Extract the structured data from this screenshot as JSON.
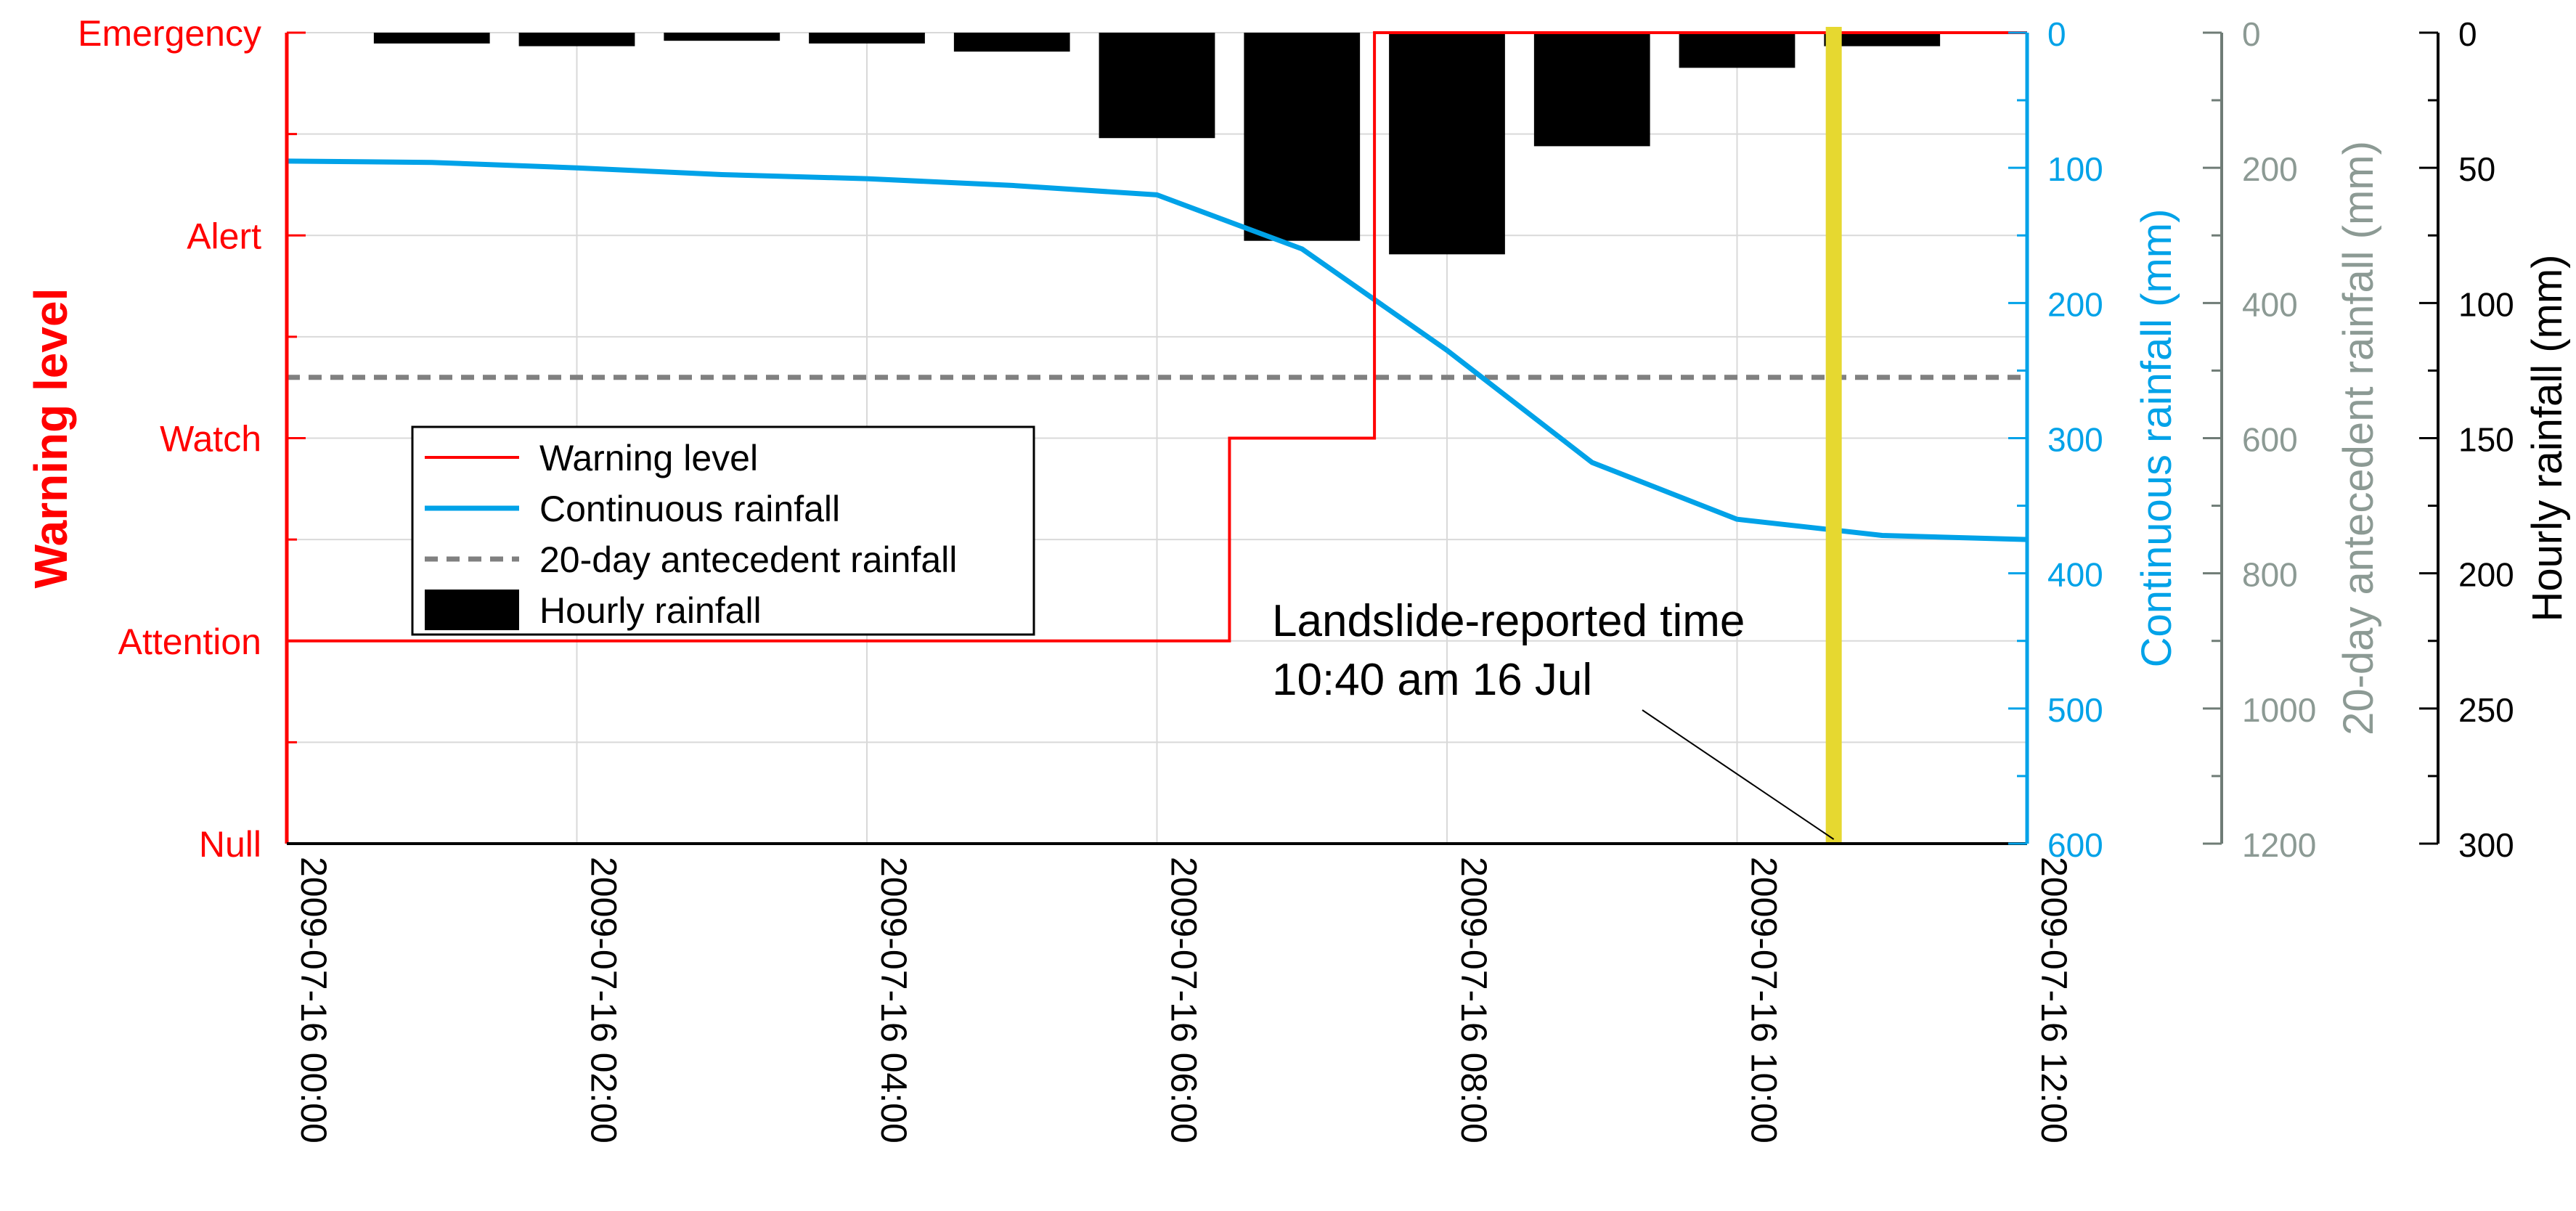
{
  "chart_data": {
    "type": "line",
    "x": {
      "start": "2009-07-16 00:00",
      "end": "2009-07-16 12:00",
      "ticks": [
        "2009-07-16 00:00",
        "2009-07-16 02:00",
        "2009-07-16 04:00",
        "2009-07-16 06:00",
        "2009-07-16 08:00",
        "2009-07-16 10:00",
        "2009-07-16 12:00"
      ],
      "grid": true
    },
    "left_axis": {
      "label": "Warning level",
      "color": "#ff0000",
      "levels": [
        "Null",
        "Attention",
        "Watch",
        "Alert",
        "Emergency"
      ]
    },
    "right_axes": [
      {
        "id": "continuous",
        "label": "Continuous rainfall (mm)",
        "color": "#00a2e8",
        "range": [
          0,
          600
        ],
        "inverted": true,
        "ticks": [
          0,
          100,
          200,
          300,
          400,
          500,
          600
        ]
      },
      {
        "id": "antecedent",
        "label": "20-day antecedent rainfall (mm)",
        "color": "#8c9a94",
        "range": [
          0,
          1200
        ],
        "inverted": true,
        "ticks": [
          0,
          200,
          400,
          600,
          800,
          1000,
          1200
        ]
      },
      {
        "id": "hourly",
        "label": "Hourly rainfall (mm)",
        "color": "#000000",
        "range": [
          0,
          300
        ],
        "inverted": true,
        "ticks": [
          0,
          50,
          100,
          150,
          200,
          250,
          300
        ]
      }
    ],
    "series": [
      {
        "name": "Warning level",
        "kind": "step",
        "axis": "level",
        "color": "#ff0000",
        "points": [
          [
            "2009-07-16 00:00",
            1
          ],
          [
            "2009-07-16 06:30",
            2
          ],
          [
            "2009-07-16 07:30",
            4
          ],
          [
            "2009-07-16 12:00",
            4
          ]
        ]
      },
      {
        "name": "Continuous rainfall",
        "kind": "line",
        "axis": "continuous",
        "color": "#00a2e8",
        "points": [
          [
            "2009-07-16 00:00",
            95
          ],
          [
            "2009-07-16 01:00",
            96
          ],
          [
            "2009-07-16 02:00",
            100
          ],
          [
            "2009-07-16 03:00",
            105
          ],
          [
            "2009-07-16 04:00",
            108
          ],
          [
            "2009-07-16 05:00",
            113
          ],
          [
            "2009-07-16 06:00",
            120
          ],
          [
            "2009-07-16 07:00",
            160
          ],
          [
            "2009-07-16 08:00",
            235
          ],
          [
            "2009-07-16 09:00",
            318
          ],
          [
            "2009-07-16 10:00",
            360
          ],
          [
            "2009-07-16 11:00",
            372
          ],
          [
            "2009-07-16 12:00",
            375
          ]
        ]
      },
      {
        "name": "20-day antecedent rainfall",
        "kind": "line",
        "axis": "antecedent",
        "style": "dashed",
        "color": "#808080",
        "points": [
          [
            "2009-07-16 00:00",
            510
          ],
          [
            "2009-07-16 12:00",
            510
          ]
        ]
      },
      {
        "name": "Hourly rainfall",
        "kind": "bar",
        "axis": "hourly",
        "color": "#000000",
        "points": [
          [
            "2009-07-16 01:00",
            4
          ],
          [
            "2009-07-16 02:00",
            5
          ],
          [
            "2009-07-16 03:00",
            3
          ],
          [
            "2009-07-16 04:00",
            4
          ],
          [
            "2009-07-16 05:00",
            7
          ],
          [
            "2009-07-16 06:00",
            39
          ],
          [
            "2009-07-16 07:00",
            77
          ],
          [
            "2009-07-16 08:00",
            82
          ],
          [
            "2009-07-16 09:00",
            42
          ],
          [
            "2009-07-16 10:00",
            13
          ],
          [
            "2009-07-16 11:00",
            5
          ]
        ]
      }
    ],
    "legend": {
      "placement": "center-left",
      "entries": [
        "Warning level",
        "Continuous rainfall",
        "20-day antecedent rainfall",
        "Hourly rainfall"
      ]
    },
    "event": {
      "time": "2009-07-16 10:40",
      "color": "#e6d830",
      "label_line1": "Landslide-reported time",
      "label_line2": "10:40 am 16 Jul"
    }
  }
}
